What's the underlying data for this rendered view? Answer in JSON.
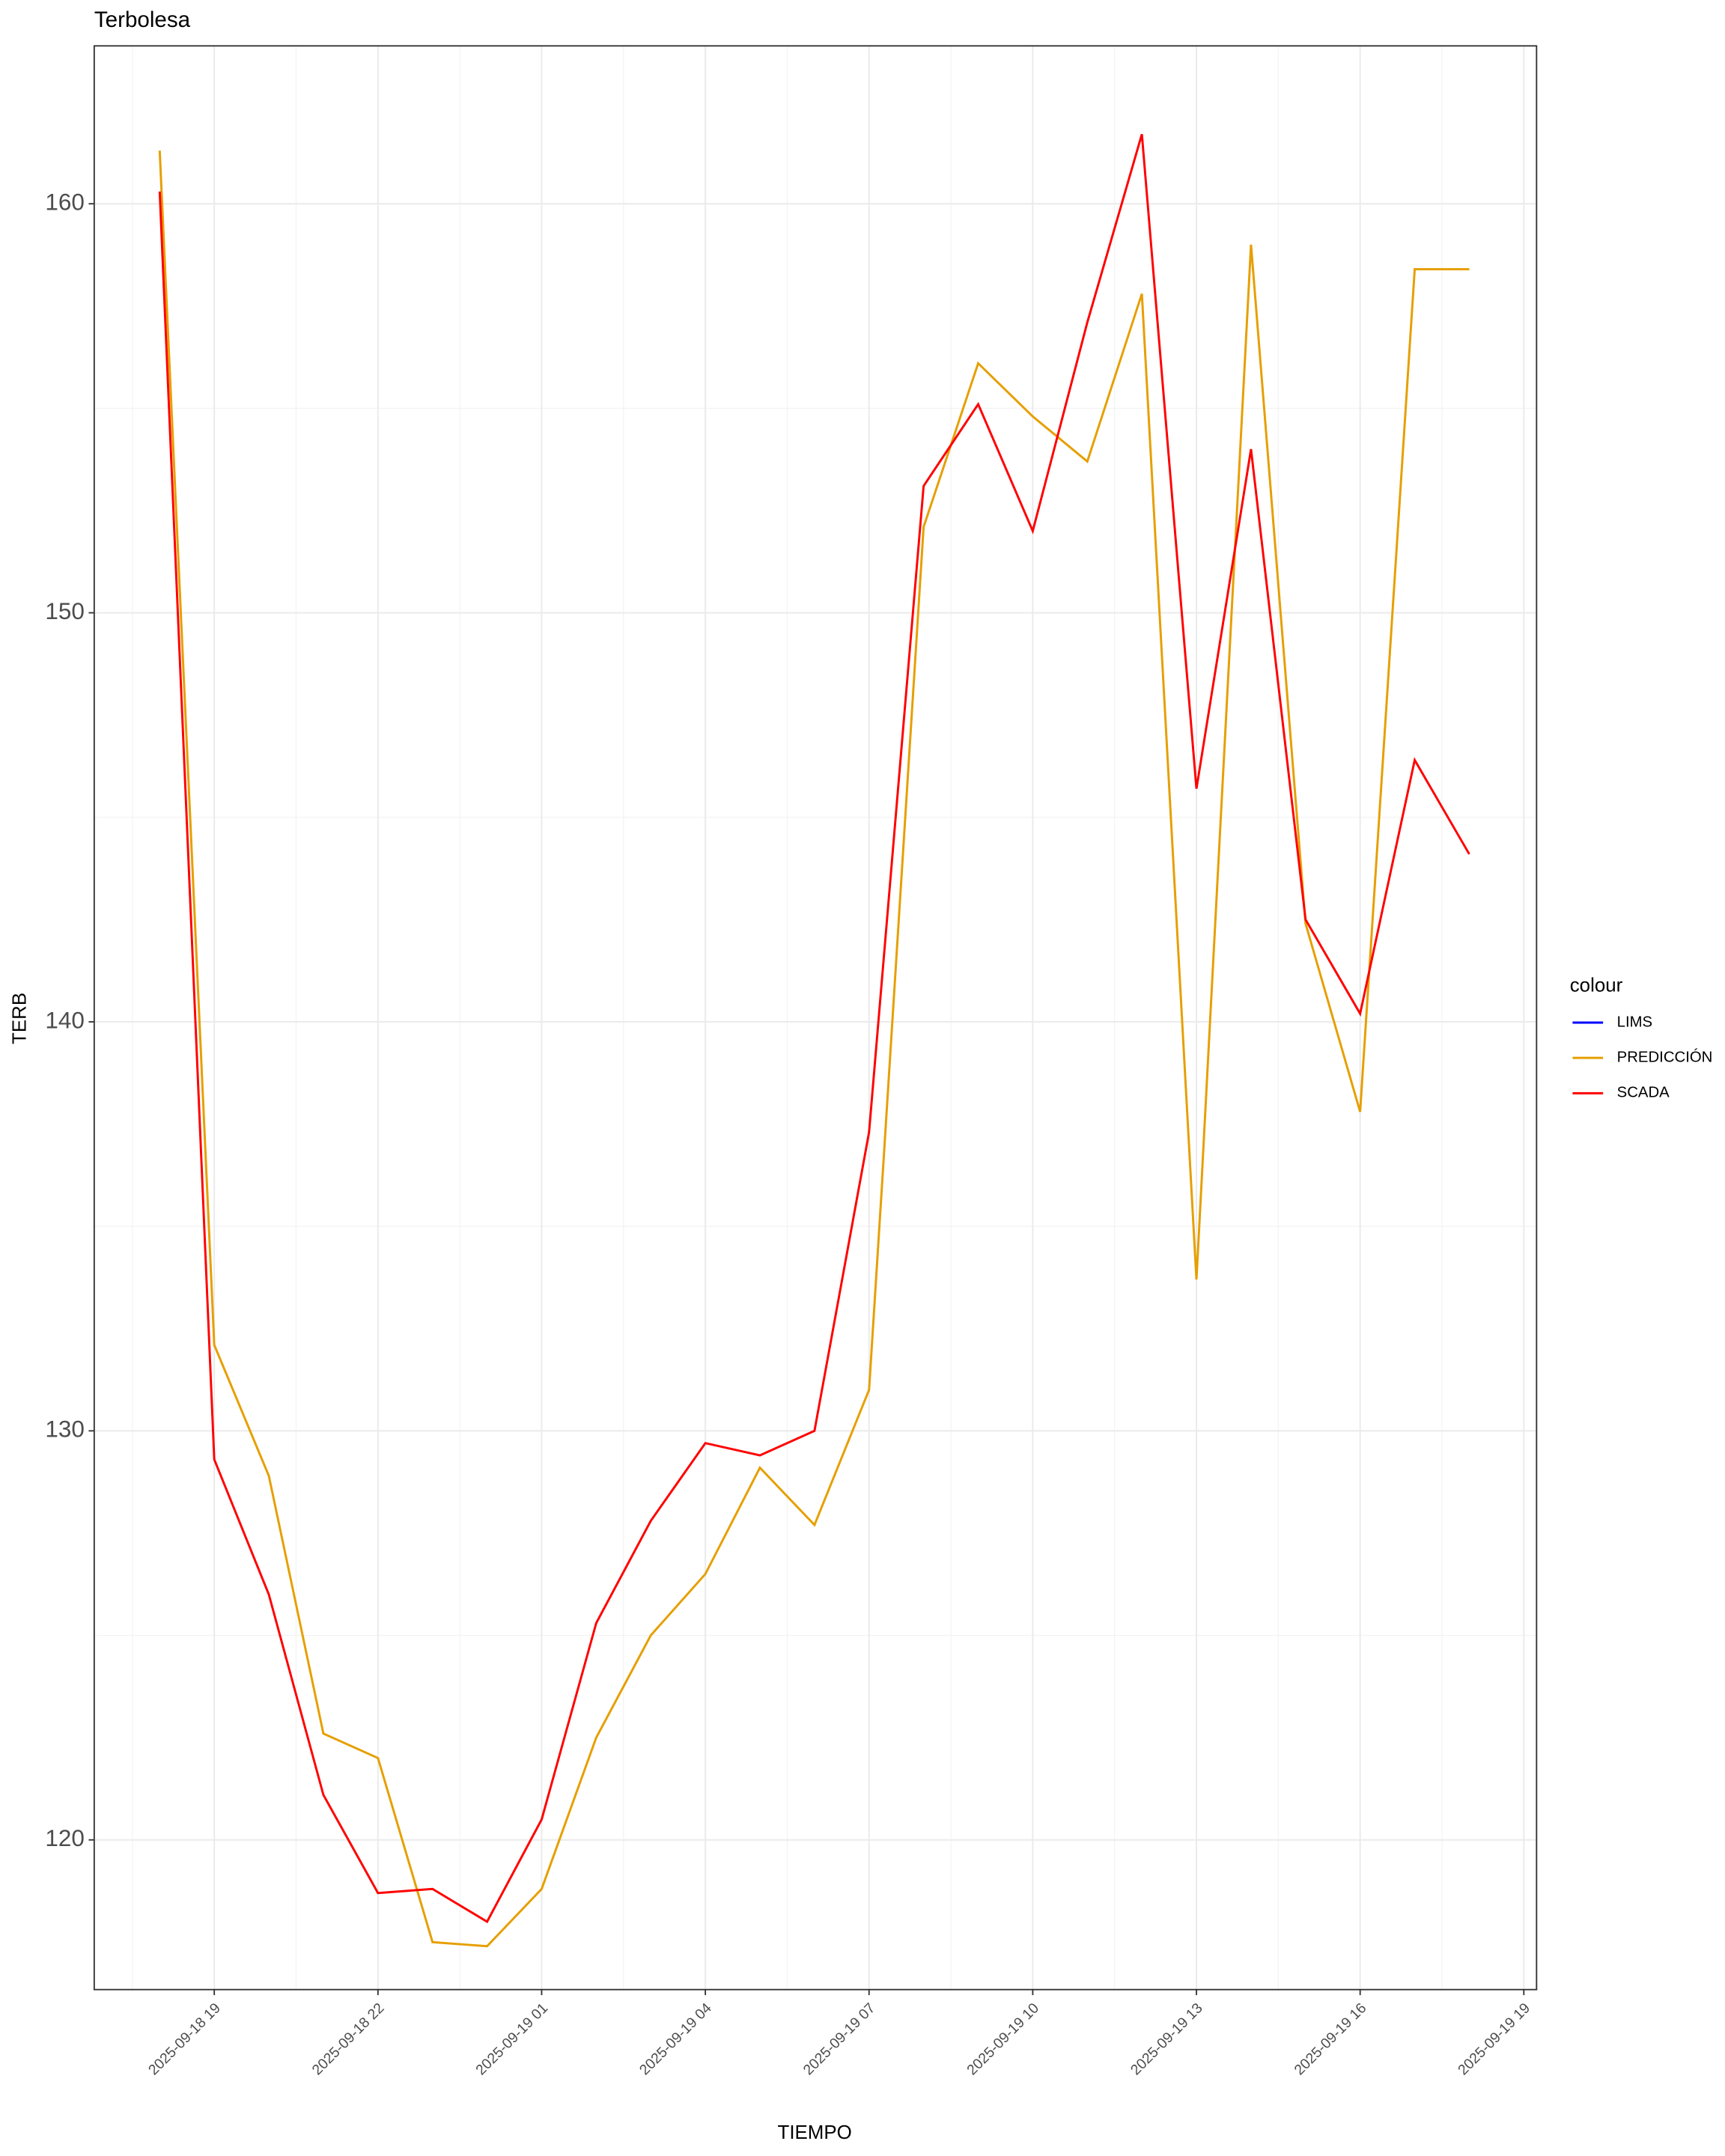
{
  "chart_data": {
    "type": "line",
    "title": "Terbolesa",
    "x_label": "TIEMPO",
    "y_label": "TERB",
    "legend_title": "colour",
    "legend_position": "right",
    "grid": true,
    "x": [
      "2025-09-18 18",
      "2025-09-18 19",
      "2025-09-18 20",
      "2025-09-18 21",
      "2025-09-18 22",
      "2025-09-18 23",
      "2025-09-19 00",
      "2025-09-19 01",
      "2025-09-19 02",
      "2025-09-19 03",
      "2025-09-19 04",
      "2025-09-19 05",
      "2025-09-19 06",
      "2025-09-19 07",
      "2025-09-19 08",
      "2025-09-19 09",
      "2025-09-19 10",
      "2025-09-19 11",
      "2025-09-19 12",
      "2025-09-19 13",
      "2025-09-19 14",
      "2025-09-19 15",
      "2025-09-19 16",
      "2025-09-19 17",
      "2025-09-19 18"
    ],
    "series": [
      {
        "name": "LIMS",
        "color": "#0000ff",
        "values": [
          null,
          null,
          null,
          null,
          null,
          null,
          null,
          null,
          null,
          null,
          null,
          null,
          null,
          null,
          null,
          null,
          null,
          null,
          null,
          null,
          null,
          null,
          null,
          null,
          null
        ]
      },
      {
        "name": "PREDICCIÓN",
        "color": "#e69f00",
        "values": [
          161.3,
          132.1,
          128.9,
          122.6,
          122.0,
          117.5,
          117.4,
          118.8,
          122.5,
          125.0,
          126.5,
          129.1,
          127.7,
          131.0,
          152.1,
          156.1,
          154.8,
          153.7,
          157.8,
          133.7,
          159.0,
          142.4,
          137.8,
          158.4,
          158.4
        ]
      },
      {
        "name": "SCADA",
        "color": "#ff0000",
        "values": [
          160.3,
          129.3,
          126.0,
          121.1,
          118.7,
          118.8,
          118.0,
          120.5,
          125.3,
          127.8,
          129.7,
          129.4,
          130.0,
          137.3,
          153.1,
          155.1,
          152.0,
          157.1,
          161.7,
          145.7,
          154.0,
          142.5,
          140.2,
          146.4,
          144.1
        ]
      }
    ],
    "xlim": [
      "2025-09-18 16:48",
      "2025-09-19 19:14"
    ],
    "xticks": [
      "2025-09-18 19",
      "2025-09-18 22",
      "2025-09-19 01",
      "2025-09-19 04",
      "2025-09-19 07",
      "2025-09-19 10",
      "2025-09-19 13",
      "2025-09-19 16",
      "2025-09-19 19"
    ],
    "ylim": [
      116.34,
      163.86
    ],
    "yticks": [
      120,
      130,
      140,
      150,
      160
    ]
  }
}
